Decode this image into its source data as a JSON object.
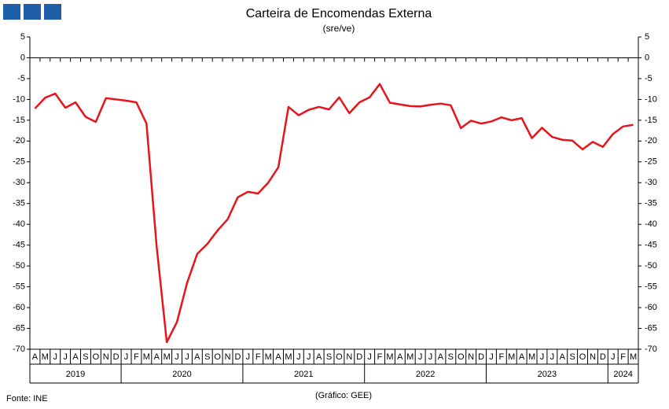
{
  "chart_data": {
    "type": "line",
    "title": "Carteira de Encomendas Externa",
    "subtitle": "(sre/ve)",
    "source": "Fonte: INE",
    "credit": "(Gráfico: GEE)",
    "categories": [
      "A",
      "M",
      "J",
      "J",
      "A",
      "S",
      "O",
      "N",
      "D",
      "J",
      "F",
      "M",
      "A",
      "M",
      "J",
      "J",
      "A",
      "S",
      "O",
      "N",
      "D",
      "J",
      "F",
      "M",
      "A",
      "M",
      "J",
      "J",
      "A",
      "S",
      "O",
      "N",
      "D",
      "J",
      "F",
      "M",
      "A",
      "M",
      "J",
      "J",
      "A",
      "S",
      "O",
      "N",
      "D",
      "J",
      "F",
      "M",
      "A",
      "M",
      "J",
      "J",
      "A",
      "S",
      "O",
      "N",
      "D",
      "J",
      "F",
      "M"
    ],
    "years": [
      "2019",
      "2020",
      "2021",
      "2022",
      "2023",
      "2024"
    ],
    "series": [
      {
        "color": "#e8141c",
        "values": [
          -12.2,
          -9.6,
          -8.6,
          -12.0,
          -10.7,
          -14.2,
          -15.4,
          -9.7,
          -10.0,
          -10.3,
          -10.7,
          -15.8,
          -45.3,
          -68.3,
          -63.5,
          -54.1,
          -47.1,
          -44.7,
          -41.5,
          -38.8,
          -33.5,
          -32.2,
          -32.6,
          -30.0,
          -26.3,
          -11.8,
          -13.8,
          -12.5,
          -11.8,
          -12.4,
          -9.5,
          -13.3,
          -10.7,
          -9.5,
          -6.3,
          -10.8,
          -11.2,
          -11.6,
          -11.7,
          -11.3,
          -11.0,
          -11.4,
          -16.9,
          -15.1,
          -15.8,
          -15.3,
          -14.3,
          -15.0,
          -14.5,
          -19.3,
          -16.8,
          -19.0,
          -19.7,
          -19.9,
          -22.0,
          -20.2,
          -21.4,
          -18.3,
          -16.5,
          -16.1
        ]
      }
    ],
    "ylim": [
      -70,
      5
    ],
    "yticks": [
      5,
      0,
      -5,
      -10,
      -15,
      -20,
      -25,
      -30,
      -35,
      -40,
      -45,
      -50,
      -55,
      -60,
      -65,
      -70
    ]
  }
}
